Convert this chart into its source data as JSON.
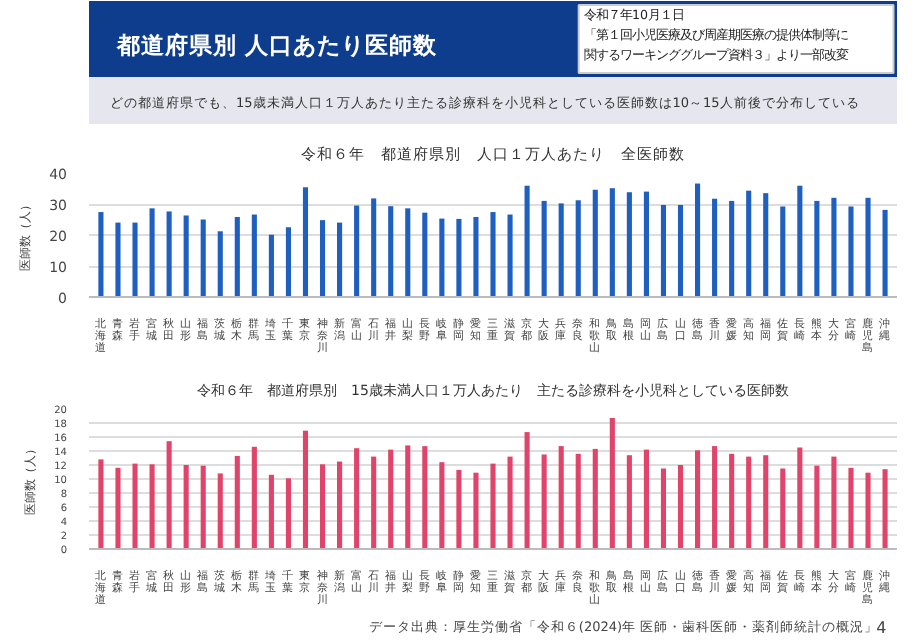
{
  "chart_data": [
    {
      "type": "bar",
      "title": "令和６年　都道府県別　人口１万人あたり　全医師数",
      "ylabel": "医師数（人）",
      "annotations": [
        "都道府県別 人口あたり医師数",
        "令和７年10月１日",
        "「第１回小児医療及び周産期医療の提供体制等に",
        "関するワーキンググループ資料３」より一部改変",
        "どの都道府県でも、15歳未満人口１万人あたり主たる診療科を小児科としている医師数は10～15人前後で分布している"
      ],
      "categories": [
        "北海道",
        "青森",
        "岩手",
        "宮城",
        "秋田",
        "山形",
        "福島",
        "茨城",
        "栃木",
        "群馬",
        "埼玉",
        "千葉",
        "東京",
        "神奈川",
        "新潟",
        "富山",
        "石川",
        "福井",
        "山梨",
        "長野",
        "岐阜",
        "静岡",
        "愛知",
        "三重",
        "滋賀",
        "京都",
        "大阪",
        "兵庫",
        "奈良",
        "和歌山",
        "鳥取",
        "島根",
        "岡山",
        "広島",
        "山口",
        "徳島",
        "香川",
        "愛媛",
        "高知",
        "福岡",
        "佐賀",
        "長崎",
        "熊本",
        "大分",
        "宮崎",
        "鹿児島",
        "沖縄"
      ],
      "values": [
        27.4,
        24,
        24,
        28.6,
        27.6,
        26.3,
        25,
        21.2,
        25.8,
        26.6,
        20.1,
        22.5,
        35.4,
        24.8,
        24,
        29.5,
        31.8,
        29.3,
        28.6,
        27.2,
        25.3,
        25.2,
        25.8,
        27.4,
        26.6,
        35.9,
        31,
        30.2,
        31.2,
        34.6,
        35.1,
        33.8,
        34,
        29.7,
        29.7,
        36.6,
        31.7,
        31,
        34.3,
        33.5,
        29.2,
        35.9,
        31,
        32,
        29.2,
        32,
        28.1
      ],
      "color": "#1f5fbf",
      "ylim": [
        0,
        40
      ],
      "yticks": [
        0,
        10,
        20,
        30,
        40
      ],
      "grid": "y"
    },
    {
      "type": "bar",
      "title": "令和６年　都道府県別　15歳未満人口１万人あたり　主たる診療科を小児科としている医師数",
      "ylabel": "医師数（人）",
      "annotations": [
        "データ出典：厚生労働省「令和６(2024)年 医師・歯科医師・薬剤師統計の概況」",
        "4"
      ],
      "categories": [
        "北海道",
        "青森",
        "岩手",
        "宮城",
        "秋田",
        "山形",
        "福島",
        "茨城",
        "栃木",
        "群馬",
        "埼玉",
        "千葉",
        "東京",
        "神奈川",
        "新潟",
        "富山",
        "石川",
        "福井",
        "山梨",
        "長野",
        "岐阜",
        "静岡",
        "愛知",
        "三重",
        "滋賀",
        "京都",
        "大阪",
        "兵庫",
        "奈良",
        "和歌山",
        "鳥取",
        "島根",
        "岡山",
        "広島",
        "山口",
        "徳島",
        "香川",
        "愛媛",
        "高知",
        "福岡",
        "佐賀",
        "長崎",
        "熊本",
        "大分",
        "宮崎",
        "鹿児島",
        "沖縄"
      ],
      "values": [
        12.8,
        11.6,
        12.2,
        12.1,
        15.4,
        12,
        11.9,
        10.8,
        13.3,
        14.6,
        10.6,
        10.1,
        16.9,
        12.1,
        12.5,
        14.4,
        13.2,
        14.2,
        14.8,
        14.7,
        12.4,
        11.3,
        10.9,
        12.2,
        13.2,
        16.7,
        13.5,
        14.7,
        13.6,
        14.3,
        18.7,
        13.4,
        14.2,
        11.5,
        12,
        14.1,
        14.7,
        13.6,
        13.2,
        13.4,
        11.5,
        14.5,
        11.9,
        13.2,
        11.6,
        10.9,
        11.4
      ],
      "color": "#e0446a",
      "ylim": [
        0,
        20
      ],
      "yticks": [
        0,
        2,
        4,
        6,
        8,
        10,
        12,
        14,
        16,
        18,
        20
      ],
      "grid": "y"
    }
  ]
}
